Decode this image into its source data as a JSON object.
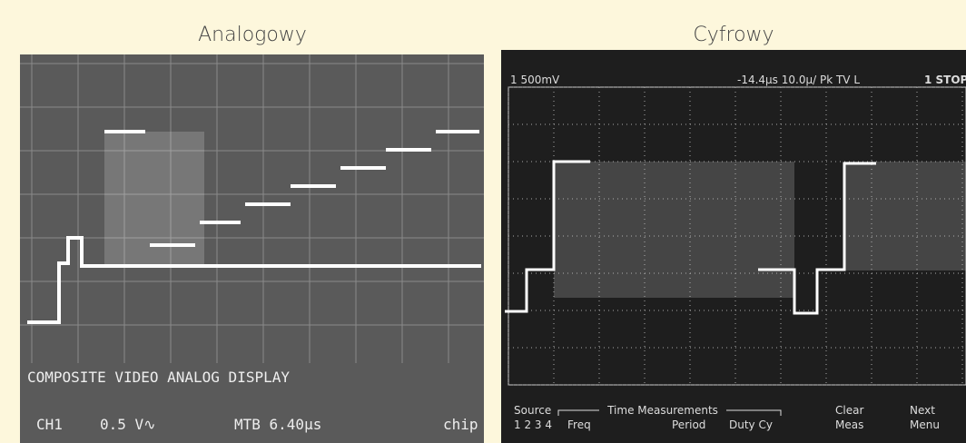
{
  "panels": [
    {
      "caption": "Analogowy",
      "screen": {
        "title": "COMPOSITE VIDEO ANALOG DISPLAY",
        "channel": "CH1",
        "volts": "0.5 V∿",
        "timebase": "MTB 6.40µs",
        "tag": "chip"
      }
    },
    {
      "caption": "Cyfrowy",
      "screen": {
        "scale": "1 500mV",
        "trigger": "-14.4µs  10.0µ/ Pk  TV L",
        "state": "1 STOP",
        "source": "Source",
        "channels": "1 2 3 4",
        "menu_title": "Time Measurements",
        "freq": "Freq",
        "period": "Period",
        "duty": "Duty Cy",
        "clear": "Clear",
        "meas": "Meas",
        "next": "Next",
        "menu": "Menu"
      }
    }
  ]
}
